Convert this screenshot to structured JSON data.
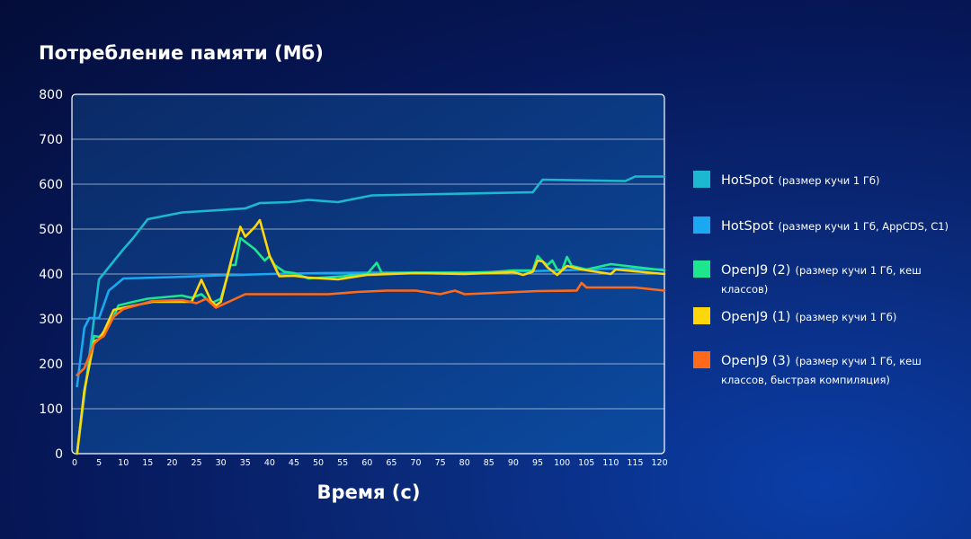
{
  "chart_data": {
    "type": "line",
    "title": "Потребление памяти (Мб)",
    "xlabel": "Время (с)",
    "ylabel": "",
    "xlim": [
      0,
      121
    ],
    "ylim": [
      0,
      800
    ],
    "x_ticks": [
      0,
      5,
      10,
      15,
      20,
      25,
      30,
      35,
      40,
      45,
      50,
      55,
      60,
      65,
      70,
      75,
      80,
      85,
      90,
      95,
      100,
      105,
      110,
      115,
      120
    ],
    "y_ticks": [
      0,
      100,
      200,
      300,
      400,
      500,
      600,
      700,
      800
    ],
    "grid": true,
    "legend_position": "right",
    "series": [
      {
        "name": "HotSpot",
        "note": "(размер кучи 1 Гб)",
        "color": "#1cb8d0",
        "points": [
          [
            0.5,
            0
          ],
          [
            5,
            388
          ],
          [
            10,
            455
          ],
          [
            12,
            480
          ],
          [
            15,
            522
          ],
          [
            22,
            537
          ],
          [
            35,
            546
          ],
          [
            38,
            558
          ],
          [
            44,
            560
          ],
          [
            48,
            565
          ],
          [
            54,
            560
          ],
          [
            61,
            575
          ],
          [
            94,
            582
          ],
          [
            96,
            610
          ],
          [
            113,
            607
          ],
          [
            115,
            617
          ],
          [
            121,
            617
          ]
        ]
      },
      {
        "name": "HotSpot",
        "note": "(размер кучи 1 Гб, AppCDS, C1)",
        "color": "#1aa8f0",
        "points": [
          [
            0.5,
            150
          ],
          [
            2,
            280
          ],
          [
            3,
            302
          ],
          [
            5,
            302
          ],
          [
            7,
            363
          ],
          [
            10,
            390
          ],
          [
            20,
            393
          ],
          [
            30,
            397
          ],
          [
            40,
            400
          ],
          [
            50,
            402
          ],
          [
            60,
            403
          ],
          [
            80,
            403
          ],
          [
            100,
            408
          ],
          [
            110,
            412
          ],
          [
            121,
            410
          ]
        ]
      },
      {
        "name": "OpenJ9 (2)",
        "note": "(размер кучи 1 Гб, кеш классов)",
        "color": "#1de68f",
        "points": [
          [
            0.5,
            0
          ],
          [
            2,
            140
          ],
          [
            4,
            262
          ],
          [
            5,
            260
          ],
          [
            6,
            268
          ],
          [
            8,
            305
          ],
          [
            9,
            330
          ],
          [
            12,
            338
          ],
          [
            15,
            345
          ],
          [
            22,
            352
          ],
          [
            24,
            347
          ],
          [
            26,
            355
          ],
          [
            28,
            335
          ],
          [
            30,
            345
          ],
          [
            32,
            420
          ],
          [
            33,
            420
          ],
          [
            34,
            480
          ],
          [
            37,
            455
          ],
          [
            39,
            430
          ],
          [
            40,
            440
          ],
          [
            41,
            420
          ],
          [
            43,
            405
          ],
          [
            45,
            402
          ],
          [
            48,
            390
          ],
          [
            55,
            395
          ],
          [
            60,
            400
          ],
          [
            62,
            425
          ],
          [
            63,
            402
          ],
          [
            70,
            403
          ],
          [
            80,
            403
          ],
          [
            85,
            404
          ],
          [
            90,
            408
          ],
          [
            94,
            408
          ],
          [
            95,
            440
          ],
          [
            96,
            428
          ],
          [
            97,
            420
          ],
          [
            98,
            430
          ],
          [
            99,
            410
          ],
          [
            100,
            408
          ],
          [
            101,
            438
          ],
          [
            102,
            418
          ],
          [
            105,
            410
          ],
          [
            110,
            422
          ],
          [
            121,
            408
          ]
        ]
      },
      {
        "name": "OpenJ9 (1)",
        "note": "(размер кучи 1 Гб)",
        "color": "#ffd60a",
        "points": [
          [
            0.5,
            0
          ],
          [
            2,
            140
          ],
          [
            4,
            250
          ],
          [
            5,
            255
          ],
          [
            6,
            272
          ],
          [
            8,
            320
          ],
          [
            10,
            325
          ],
          [
            16,
            338
          ],
          [
            24,
            338
          ],
          [
            25,
            362
          ],
          [
            26,
            387
          ],
          [
            28,
            340
          ],
          [
            29,
            330
          ],
          [
            30,
            338
          ],
          [
            32,
            425
          ],
          [
            34,
            505
          ],
          [
            35,
            483
          ],
          [
            37,
            505
          ],
          [
            38,
            520
          ],
          [
            40,
            440
          ],
          [
            42,
            395
          ],
          [
            45,
            396
          ],
          [
            48,
            392
          ],
          [
            54,
            388
          ],
          [
            60,
            398
          ],
          [
            70,
            402
          ],
          [
            80,
            400
          ],
          [
            90,
            404
          ],
          [
            92,
            398
          ],
          [
            94,
            405
          ],
          [
            95,
            430
          ],
          [
            96,
            428
          ],
          [
            97,
            415
          ],
          [
            99,
            398
          ],
          [
            101,
            418
          ],
          [
            104,
            410
          ],
          [
            110,
            400
          ],
          [
            111,
            410
          ],
          [
            121,
            400
          ]
        ]
      },
      {
        "name": "OpenJ9 (3)",
        "note": "(размер кучи 1 Гб, кеш классов, быстрая компиляция)",
        "color": "#ff6a1a",
        "points": [
          [
            0.5,
            175
          ],
          [
            2,
            190
          ],
          [
            4,
            245
          ],
          [
            5,
            255
          ],
          [
            6,
            262
          ],
          [
            8,
            305
          ],
          [
            10,
            322
          ],
          [
            16,
            340
          ],
          [
            22,
            342
          ],
          [
            25,
            335
          ],
          [
            27,
            345
          ],
          [
            29,
            325
          ],
          [
            32,
            340
          ],
          [
            35,
            355
          ],
          [
            40,
            355
          ],
          [
            52,
            355
          ],
          [
            58,
            360
          ],
          [
            64,
            363
          ],
          [
            70,
            363
          ],
          [
            75,
            355
          ],
          [
            78,
            363
          ],
          [
            80,
            355
          ],
          [
            95,
            362
          ],
          [
            103,
            363
          ],
          [
            104,
            380
          ],
          [
            105,
            370
          ],
          [
            115,
            370
          ],
          [
            121,
            363
          ]
        ]
      }
    ]
  }
}
